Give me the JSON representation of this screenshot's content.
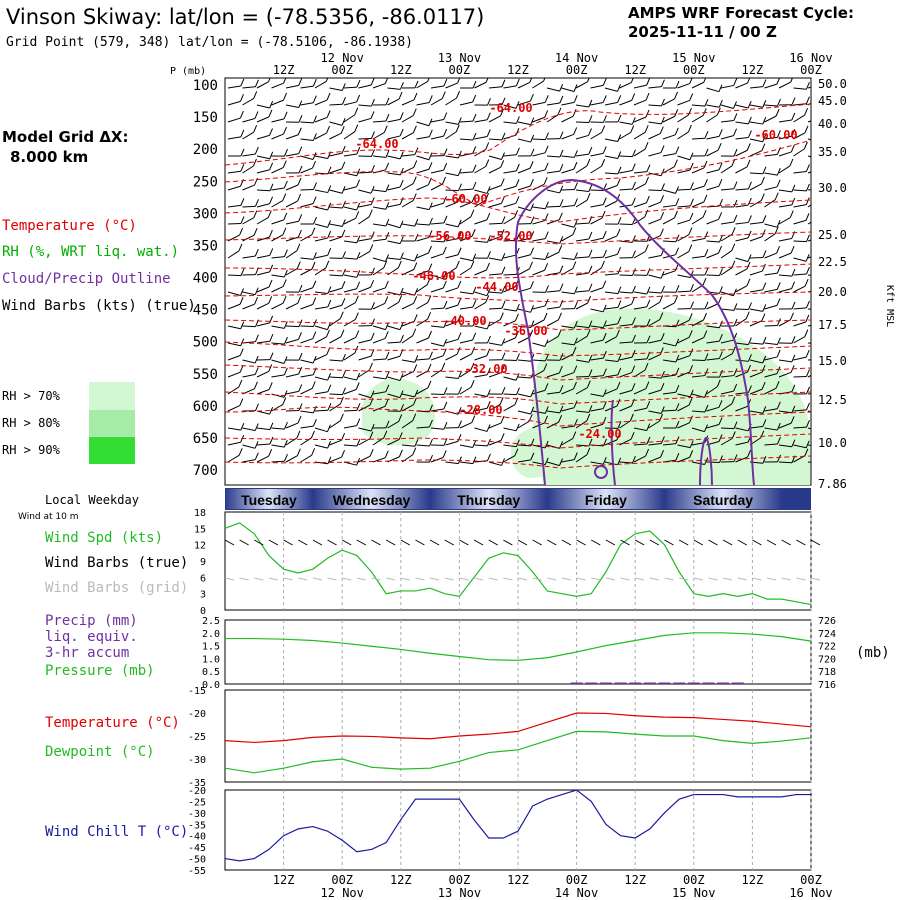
{
  "header": {
    "title": "Vinson Skiway:  lat/lon = (-78.5356, -86.0117)",
    "subtitle": "Grid Point (579, 348) lat/lon = (-78.5106, -86.1938)",
    "cycle_line1": "AMPS WRF Forecast Cycle:",
    "cycle_line2": "2025-11-11 / 00  Z"
  },
  "legend": {
    "model_grid_1": "Model Grid ΔX:",
    "model_grid_2": "8.000 km",
    "temperature": "Temperature (°C)",
    "rh": "RH (%, WRT liq. wat.)",
    "cloud": "Cloud/Precip Outline",
    "wind": "Wind Barbs (kts) (true)",
    "rh70": "RH > 70%",
    "rh80": "RH > 80%",
    "rh90": "RH > 90%",
    "local_weekday": "Local Weekday",
    "wind_10m": "Wind at 10 m",
    "wind_spd": "Wind Spd (kts)",
    "wind_barbs_true": "Wind Barbs (true)",
    "wind_barbs_grid": "Wind Barbs (grid)",
    "precip1": "Precip (mm)",
    "precip2": "liq. equiv.",
    "precip3": "3-hr accum",
    "pressure": "Pressure (mb)",
    "pressure_unit": "(mb)",
    "temp2": "Temperature (°C)",
    "dewpoint": "Dewpoint (°C)",
    "windchill": "Wind Chill T (°C)",
    "p_axis": "P (mb)",
    "kft": "Kft MSL"
  },
  "colors": {
    "temperature": "#e00000",
    "rh_line": "#00b000",
    "cloud": "#7030a0",
    "rh70": "#d2f7d2",
    "rh80": "#a6eba6",
    "rh90": "#33dd33",
    "pressure": "#22bb22",
    "windchill": "#1a1aa0",
    "grid": "#aaaaaa"
  },
  "time_axis": {
    "ticks": [
      {
        "h": 12,
        "top": "12Z",
        "date": ""
      },
      {
        "h": 24,
        "top": "00Z",
        "date": "12 Nov"
      },
      {
        "h": 36,
        "top": "12Z",
        "date": ""
      },
      {
        "h": 48,
        "top": "00Z",
        "date": "13 Nov"
      },
      {
        "h": 60,
        "top": "12Z",
        "date": ""
      },
      {
        "h": 72,
        "top": "00Z",
        "date": "14 Nov"
      },
      {
        "h": 84,
        "top": "12Z",
        "date": ""
      },
      {
        "h": 96,
        "top": "00Z",
        "date": "15 Nov"
      },
      {
        "h": 108,
        "top": "12Z",
        "date": ""
      },
      {
        "h": 120,
        "top": "00Z",
        "date": "16 Nov"
      }
    ],
    "days": [
      "Tuesday",
      "Wednesday",
      "Thursday",
      "Friday",
      "Saturday"
    ]
  },
  "chart_data": [
    {
      "type": "contour",
      "panel": "cross-section",
      "y_left_label": "P (mb)",
      "y_left_ticks": [
        100,
        150,
        200,
        250,
        300,
        350,
        400,
        450,
        500,
        550,
        600,
        650,
        700
      ],
      "y_right_label": "Kft MSL",
      "y_right_ticks": [
        "50.0",
        "45.0",
        "40.0",
        "35.0",
        "30.0",
        "25.0",
        "22.5",
        "20.0",
        "17.5",
        "15.0",
        "12.5",
        "10.0",
        "7.86"
      ],
      "temperature_labels": [
        "-64.00",
        "-64.00",
        "-60.00",
        "-60.00",
        "-56.00",
        "-52.00",
        "-48.00",
        "-44.00",
        "-40.00",
        "-36.00",
        "-32.00",
        "-28.00",
        "-24.00"
      ]
    },
    {
      "type": "line",
      "panel": "wind",
      "ylabel": "Wind Spd (kts)",
      "y_ticks": [
        0,
        3,
        6,
        9,
        12,
        15,
        18
      ],
      "ylim": [
        0,
        18
      ],
      "x_hours": [
        0,
        3,
        6,
        9,
        12,
        15,
        18,
        21,
        24,
        27,
        30,
        33,
        36,
        39,
        42,
        45,
        48,
        51,
        54,
        57,
        60,
        63,
        66,
        69,
        72,
        75,
        78,
        81,
        84,
        87,
        90,
        93,
        96,
        99,
        102,
        105,
        108,
        111,
        114,
        117,
        120
      ],
      "series": [
        {
          "name": "Wind Spd (kts)",
          "values": [
            15,
            16,
            14,
            10,
            7.5,
            6.8,
            7.5,
            9.5,
            11,
            10,
            7,
            3,
            3.5,
            3.5,
            4,
            3,
            2.5,
            6,
            9.5,
            10.5,
            10,
            7,
            3.5,
            3,
            2.5,
            3,
            7,
            12,
            14,
            14.5,
            12,
            7,
            3,
            2.5,
            3,
            2.5,
            3,
            2,
            2,
            1.5,
            1
          ]
        }
      ]
    },
    {
      "type": "line",
      "panel": "precip-pressure",
      "y_left_ticks": [
        "0.0",
        "0.5",
        "1.0",
        "1.5",
        "2.0",
        "2.5"
      ],
      "y_right_ticks": [
        716,
        718,
        720,
        722,
        724,
        726
      ],
      "series": [
        {
          "name": "Pressure (mb)",
          "axis": "right",
          "x_hours": [
            0,
            6,
            12,
            18,
            24,
            30,
            36,
            42,
            48,
            54,
            60,
            66,
            72,
            78,
            84,
            90,
            96,
            102,
            108,
            114,
            120
          ],
          "values": [
            723.1,
            723.1,
            723.0,
            722.8,
            722.4,
            721.9,
            721.4,
            720.8,
            720.3,
            719.8,
            719.7,
            720.1,
            721.0,
            722.0,
            722.8,
            723.6,
            724.0,
            724.0,
            723.8,
            723.4,
            722.7
          ]
        },
        {
          "name": "Precip (mm)",
          "axis": "left",
          "x_hours": [
            72,
            75,
            78,
            81,
            84,
            87,
            90,
            93,
            96,
            99,
            102,
            105
          ],
          "values": [
            0.02,
            0.01,
            0.0,
            0.01,
            0.02,
            0.01,
            0.01,
            0.0,
            0.01,
            0.01,
            0.0,
            0.01
          ]
        }
      ]
    },
    {
      "type": "line",
      "panel": "temperature",
      "y_ticks": [
        -15,
        -20,
        -25,
        -30,
        -35
      ],
      "ylim": [
        -35,
        -15
      ],
      "x_hours": [
        0,
        6,
        12,
        18,
        24,
        30,
        36,
        42,
        48,
        54,
        60,
        66,
        72,
        78,
        84,
        90,
        96,
        102,
        108,
        114,
        120
      ],
      "series": [
        {
          "name": "Temperature (°C)",
          "values": [
            -26,
            -26.4,
            -26,
            -25.3,
            -25,
            -25.1,
            -25.4,
            -25.6,
            -25,
            -24.6,
            -24,
            -22,
            -20,
            -20.1,
            -20.6,
            -20.9,
            -21,
            -21.4,
            -21.8,
            -22.4,
            -23
          ]
        },
        {
          "name": "Dewpoint (°C)",
          "values": [
            -32,
            -33,
            -32,
            -30.6,
            -30,
            -31.8,
            -32.2,
            -32,
            -30.5,
            -28.6,
            -28,
            -26,
            -24,
            -24.1,
            -24.6,
            -25,
            -25,
            -26,
            -26.6,
            -26.1,
            -25.4
          ]
        }
      ]
    },
    {
      "type": "line",
      "panel": "wind-chill",
      "ylabel": "Wind Chill T (°C)",
      "y_ticks": [
        -20,
        -25,
        -30,
        -35,
        -40,
        -45,
        -50,
        -55
      ],
      "ylim": [
        -55,
        -20
      ],
      "x_hours": [
        0,
        3,
        6,
        9,
        12,
        15,
        18,
        21,
        24,
        27,
        30,
        33,
        36,
        39,
        42,
        45,
        48,
        51,
        54,
        57,
        60,
        63,
        66,
        69,
        72,
        75,
        78,
        81,
        84,
        87,
        90,
        93,
        96,
        99,
        102,
        105,
        108,
        111,
        114,
        117,
        120
      ],
      "series": [
        {
          "name": "Wind Chill T (°C)",
          "values": [
            -50,
            -51,
            -50,
            -46,
            -40,
            -37,
            -36,
            -38,
            -42,
            -47,
            -46,
            -43,
            -33,
            -24,
            -24,
            -24,
            -24,
            -33,
            -41,
            -41,
            -38,
            -27,
            -24,
            -22,
            -20,
            -25,
            -35,
            -40,
            -41,
            -37,
            -30,
            -24,
            -22,
            -22,
            -22,
            -23,
            -23,
            -23,
            -23,
            -22,
            -22
          ]
        }
      ]
    }
  ]
}
